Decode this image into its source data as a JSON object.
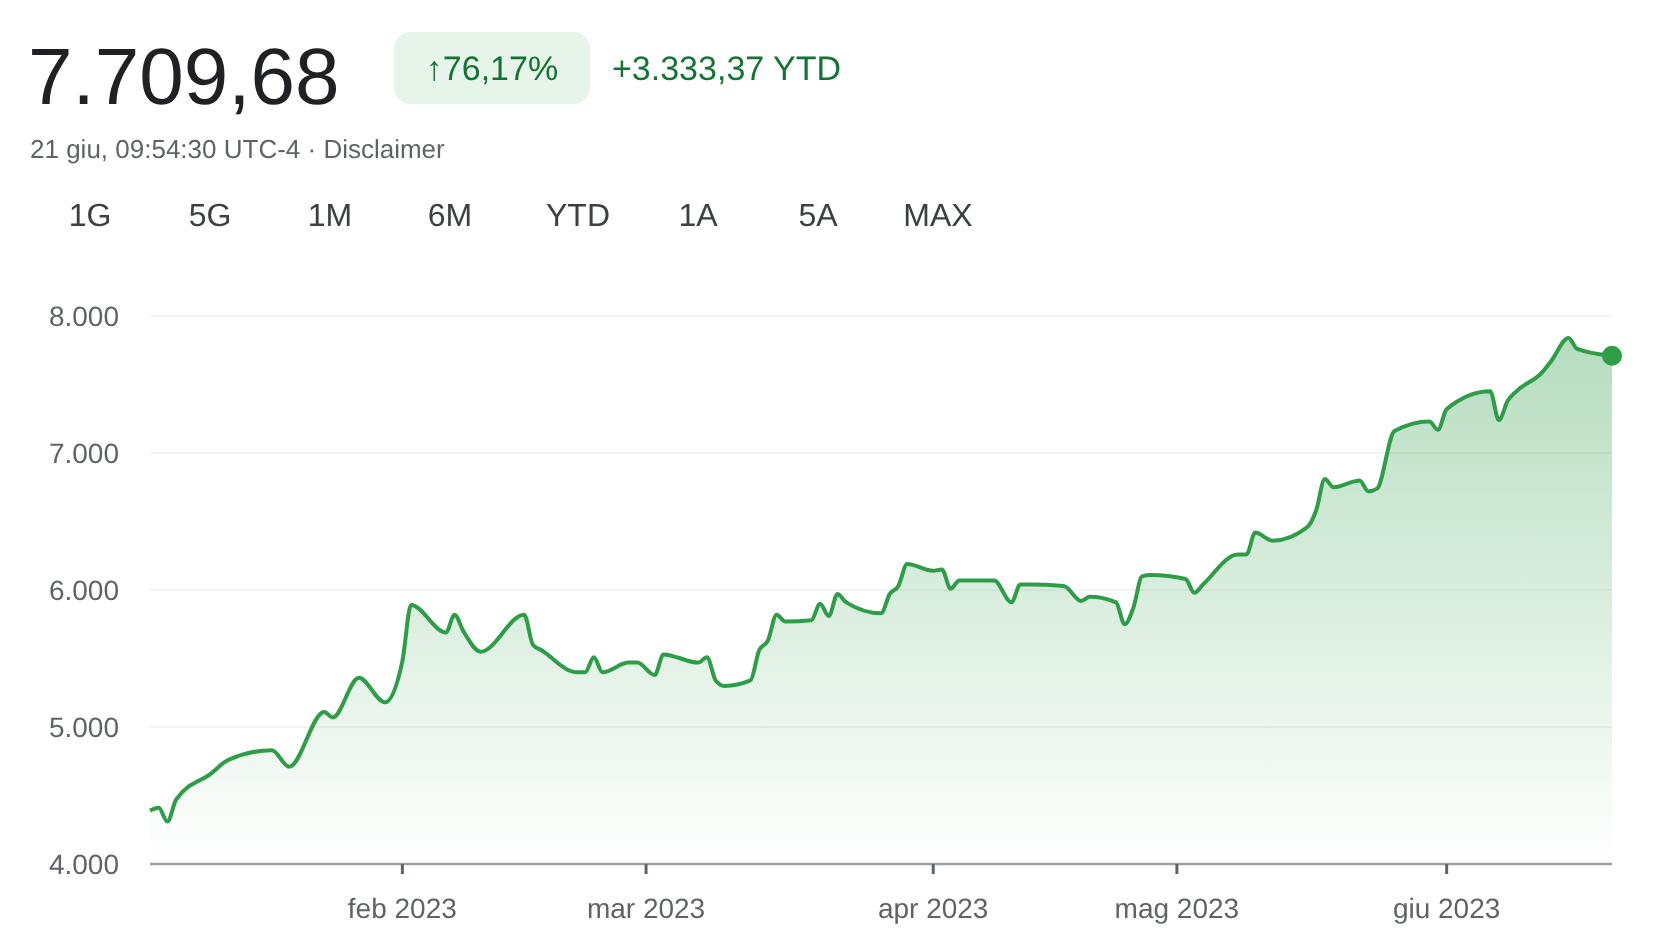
{
  "chart_data": {
    "type": "area",
    "title": "7.709,68",
    "subtitle": "21 giu, 09:54:30 UTC-4 · Disclaimer",
    "annotations": [
      "↑76,17%",
      "+3.333,37 YTD",
      "1G",
      "5G",
      "1M",
      "6M",
      "YTD",
      "1A",
      "5A",
      "MAX"
    ],
    "xlim": [
      "2023-01-03",
      "2023-06-20"
    ],
    "xticks": [
      {
        "value": "2023-02-01",
        "label": "feb 2023"
      },
      {
        "value": "2023-03-01",
        "label": "mar 2023"
      },
      {
        "value": "2023-04-03",
        "label": "apr 2023"
      },
      {
        "value": "2023-05-01",
        "label": "mag 2023"
      },
      {
        "value": "2023-06-01",
        "label": "giu 2023"
      }
    ],
    "ylim": [
      4000,
      8000
    ],
    "yticks": [
      {
        "value": 4000,
        "label": "4.000"
      },
      {
        "value": 5000,
        "label": "5.000"
      },
      {
        "value": 6000,
        "label": "6.000"
      },
      {
        "value": 7000,
        "label": "7.000"
      },
      {
        "value": 8000,
        "label": "8.000"
      }
    ],
    "grid": "y",
    "marker": "none",
    "line_style": "solid",
    "series": [
      {
        "color": "#2e9d48",
        "x": [
          "2023-01-03",
          "2023-01-04",
          "2023-01-05",
          "2023-01-06",
          "2023-01-10",
          "2023-01-12",
          "2023-01-17",
          "2023-01-19",
          "2023-01-23",
          "2023-01-24",
          "2023-01-27",
          "2023-01-30",
          "2023-02-01",
          "2023-02-02",
          "2023-02-06",
          "2023-02-07",
          "2023-02-08",
          "2023-02-10",
          "2023-02-15",
          "2023-02-16",
          "2023-02-17",
          "2023-02-21",
          "2023-02-22",
          "2023-02-23",
          "2023-02-24",
          "2023-02-27",
          "2023-02-28",
          "2023-03-02",
          "2023-03-03",
          "2023-03-07",
          "2023-03-08",
          "2023-03-09",
          "2023-03-10",
          "2023-03-13",
          "2023-03-14",
          "2023-03-15",
          "2023-03-16",
          "2023-03-17",
          "2023-03-20",
          "2023-03-21",
          "2023-03-22",
          "2023-03-23",
          "2023-03-24",
          "2023-03-28",
          "2023-03-29",
          "2023-03-30",
          "2023-03-31",
          "2023-04-03",
          "2023-04-04",
          "2023-04-05",
          "2023-04-06",
          "2023-04-10",
          "2023-04-12",
          "2023-04-13",
          "2023-04-14",
          "2023-04-18",
          "2023-04-20",
          "2023-04-21",
          "2023-04-24",
          "2023-04-25",
          "2023-04-26",
          "2023-04-27",
          "2023-04-28",
          "2023-05-02",
          "2023-05-03",
          "2023-05-04",
          "2023-05-08",
          "2023-05-09",
          "2023-05-10",
          "2023-05-12",
          "2023-05-16",
          "2023-05-17",
          "2023-05-18",
          "2023-05-19",
          "2023-05-22",
          "2023-05-23",
          "2023-05-24",
          "2023-05-26",
          "2023-05-30",
          "2023-05-31",
          "2023-06-01",
          "2023-06-06",
          "2023-06-07",
          "2023-06-08",
          "2023-06-09",
          "2023-06-12",
          "2023-06-13",
          "2023-06-15",
          "2023-06-16",
          "2023-06-20"
        ],
        "values": [
          4390,
          4410,
          4310,
          4470,
          4660,
          4760,
          4830,
          4710,
          5110,
          5070,
          5360,
          5180,
          5480,
          5890,
          5690,
          5820,
          5700,
          5550,
          5820,
          5600,
          5560,
          5400,
          5400,
          5510,
          5400,
          5470,
          5470,
          5380,
          5530,
          5470,
          5510,
          5340,
          5300,
          5340,
          5560,
          5630,
          5820,
          5770,
          5780,
          5900,
          5810,
          5970,
          5910,
          5830,
          5970,
          6030,
          6190,
          6140,
          6150,
          6010,
          6070,
          6070,
          5910,
          6040,
          6040,
          6030,
          5920,
          5950,
          5910,
          5750,
          5870,
          6100,
          6110,
          6080,
          5980,
          6040,
          6260,
          6260,
          6420,
          6360,
          6460,
          6580,
          6810,
          6750,
          6800,
          6720,
          6740,
          7160,
          7230,
          7170,
          7320,
          7450,
          7240,
          7380,
          7450,
          7590,
          7670,
          7840,
          7760,
          7710
        ]
      },
      {
        "type": "scatter",
        "marker": "circle",
        "color": "#2e9d48",
        "x": [
          "2023-06-20"
        ],
        "values": [
          7710
        ]
      }
    ]
  }
}
